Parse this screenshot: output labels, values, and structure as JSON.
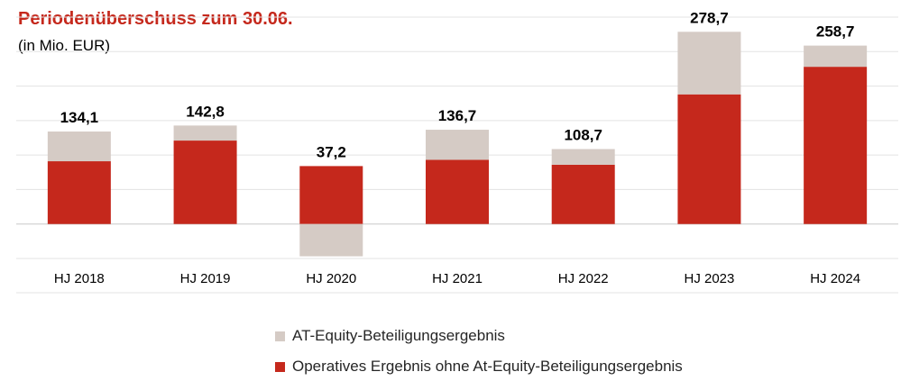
{
  "title": "Periodenüberschuss  zum 30.06.",
  "subtitle": "(in Mio. EUR)",
  "colors": {
    "accent": "#c5281c",
    "equity": "#d5cbc5"
  },
  "chart_data": {
    "type": "bar",
    "stacked": true,
    "categories": [
      "HJ 2018",
      "HJ 2019",
      "HJ 2020",
      "HJ 2021",
      "HJ 2022",
      "HJ 2023",
      "HJ 2024"
    ],
    "series": [
      {
        "name": "Operatives Ergebnis ohne At-Equity-Beteiligungsergebnis",
        "color": "#c5281c",
        "values": [
          91,
          121,
          84,
          93,
          86,
          188,
          228
        ]
      },
      {
        "name": "AT-Equity-Beteiligungsergebnis",
        "color": "#d5cbc5",
        "values": [
          43.1,
          21.8,
          -46.8,
          43.7,
          22.7,
          90.7,
          30.7
        ]
      }
    ],
    "totals": [
      "134,1",
      "142,8",
      "37,2",
      "136,7",
      "108,7",
      "278,7",
      "258,7"
    ],
    "ylim": [
      -50,
      300
    ],
    "grid": true,
    "legend_position": "bottom"
  }
}
